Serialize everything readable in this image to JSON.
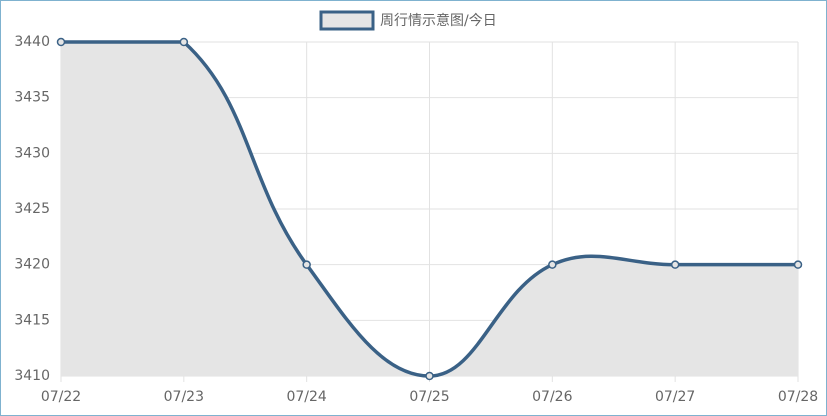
{
  "chart_data": {
    "type": "line",
    "series": [
      {
        "name": "周行情示意图/今日",
        "color": "#3a6186",
        "fill": "#e5e5e5",
        "values": [
          3440,
          3440,
          3420,
          3410,
          3420,
          3420,
          3420
        ]
      }
    ],
    "categories": [
      "07/22",
      "07/23",
      "07/24",
      "07/25",
      "07/26",
      "07/27",
      "07/28"
    ],
    "ylim": [
      3410,
      3440
    ],
    "yticks": [
      3410,
      3415,
      3420,
      3425,
      3430,
      3435,
      3440
    ],
    "grid": true,
    "legend": "top"
  }
}
